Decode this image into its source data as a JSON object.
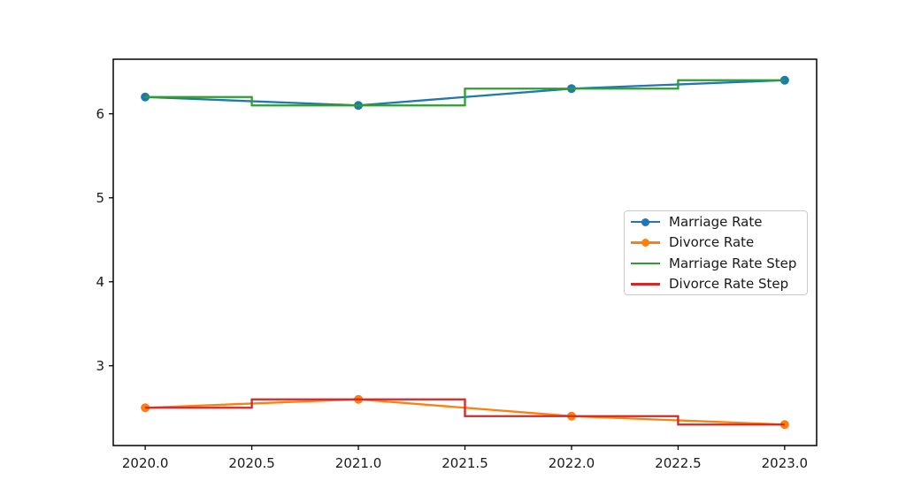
{
  "figure": {
    "background": "#ffffff",
    "axis_color": "#000000",
    "tick_label_color": "#1a1a1a"
  },
  "chart_data": {
    "type": "line",
    "title": "",
    "xlabel": "",
    "ylabel": "",
    "x": [
      2020,
      2021,
      2022,
      2023
    ],
    "series": [
      {
        "name": "Marriage Rate",
        "values": [
          6.2,
          6.1,
          6.3,
          6.4
        ],
        "color": "#1f77b4",
        "style": "line",
        "marker": "circle"
      },
      {
        "name": "Divorce Rate",
        "values": [
          2.5,
          2.6,
          2.4,
          2.3
        ],
        "color": "#ff7f0e",
        "style": "line",
        "marker": "circle"
      },
      {
        "name": "Marriage Rate Step",
        "values": [
          6.2,
          6.1,
          6.3,
          6.4
        ],
        "color": "#2ca02c",
        "style": "step-mid",
        "marker": "none"
      },
      {
        "name": "Divorce Rate Step",
        "values": [
          2.5,
          2.6,
          2.4,
          2.3
        ],
        "color": "#d62728",
        "style": "step-mid",
        "marker": "none"
      }
    ],
    "xticks": {
      "values": [
        2020.0,
        2020.5,
        2021.0,
        2021.5,
        2022.0,
        2022.5,
        2023.0
      ],
      "labels": [
        "2020.0",
        "2020.5",
        "2021.0",
        "2021.5",
        "2022.0",
        "2022.5",
        "2023.0"
      ]
    },
    "yticks": {
      "values": [
        3,
        4,
        5,
        6
      ],
      "labels": [
        "3",
        "4",
        "5",
        "6"
      ]
    },
    "xlim": [
      2019.85,
      2023.15
    ],
    "ylim": [
      2.05,
      6.65
    ],
    "grid": false,
    "legend": {
      "position": "center-right",
      "entries": [
        "Marriage Rate",
        "Divorce Rate",
        "Marriage Rate Step",
        "Divorce Rate Step"
      ]
    }
  }
}
